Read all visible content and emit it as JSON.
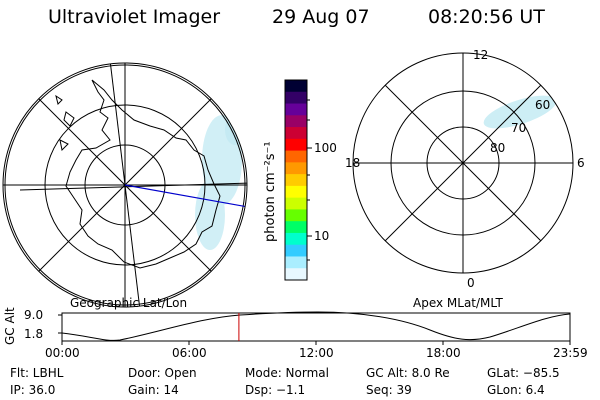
{
  "header": {
    "title": "Ultraviolet Imager",
    "date": "29 Aug 07",
    "time": "08:20:56 UT"
  },
  "colorbar": {
    "unit_label": "photon cm⁻²s⁻¹",
    "tick_100": "100",
    "tick_10": "10",
    "colors": [
      "#000033",
      "#330066",
      "#660099",
      "#990066",
      "#cc0033",
      "#ff0000",
      "#ff6600",
      "#ff9900",
      "#ffcc00",
      "#ffff00",
      "#ccff00",
      "#66ff00",
      "#00ff66",
      "#00ffcc",
      "#33ccff",
      "#aaeeff",
      "#e8f8ff"
    ]
  },
  "left_map": {
    "title": "Geographic Lat/Lon"
  },
  "right_map": {
    "title": "Apex MLat/MLT",
    "mlt_12": "12",
    "mlt_18": "18",
    "mlt_6": "6",
    "mlt_0": "0",
    "lat_60": "60",
    "lat_70": "70",
    "lat_80": "80"
  },
  "timeline": {
    "axis_label": "GC Alt",
    "y_top": "9.0",
    "y_bottom": "1.8",
    "ticks": [
      "00:00",
      "06:00",
      "12:00",
      "18:00",
      "23:59"
    ],
    "marker_time_hours": 8.35
  },
  "info": {
    "flt": "Flt: LBHL",
    "door": "Door: Open",
    "mode": "Mode: Normal",
    "gcalt": "GC Alt: 8.0 Re",
    "glat": "GLat: −85.5",
    "ip": "IP: 36.0",
    "gain": "Gain: 14",
    "dsp": "Dsp:   −1.1",
    "seq": "Seq: 39",
    "glon": "GLon:   6.4"
  }
}
